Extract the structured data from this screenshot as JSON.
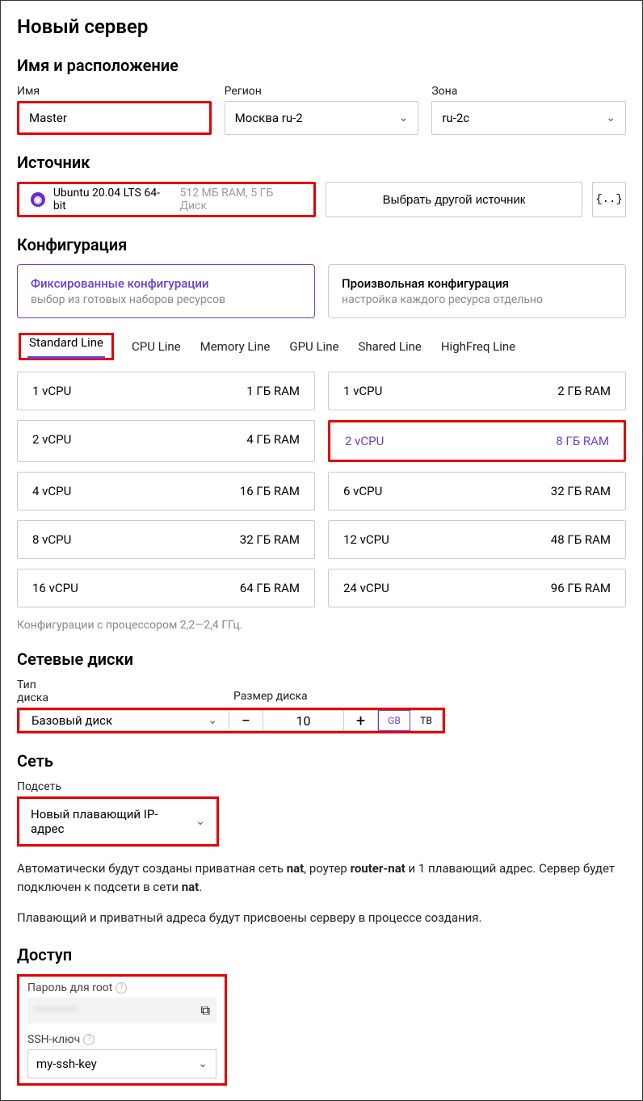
{
  "colors": {
    "highlight": "#e30000",
    "accent": "#6b3fd9",
    "muted": "#9a9a9a",
    "border": "#cccccc"
  },
  "page_title": "Новый сервер",
  "sections": {
    "name_location": {
      "title": "Имя и расположение",
      "name_label": "Имя",
      "name_value": "Master",
      "region_label": "Регион",
      "region_value": "Москва ru-2",
      "zone_label": "Зона",
      "zone_value": "ru-2c"
    },
    "source": {
      "title": "Источник",
      "os_name": "Ubuntu 20.04 LTS 64-bit",
      "os_specs": "512 МБ RAM, 5 ГБ Диск",
      "choose_other": "Выбрать другой источник",
      "code_btn": "{..}"
    },
    "config": {
      "title": "Конфигурация",
      "fixed_card": {
        "title": "Фиксированные конфигурации",
        "sub": "выбор из готовых наборов ресурсов"
      },
      "custom_card": {
        "title": "Произвольная конфигурация",
        "sub": "настройка каждого ресурса отдельно"
      },
      "tabs": [
        "Standard Line",
        "CPU Line",
        "Memory Line",
        "GPU Line",
        "Shared Line",
        "HighFreq Line"
      ],
      "options": [
        {
          "cpu": "1 vCPU",
          "ram": "1 ГБ RAM",
          "selected": false
        },
        {
          "cpu": "1 vCPU",
          "ram": "2 ГБ RAM",
          "selected": false
        },
        {
          "cpu": "2 vCPU",
          "ram": "4 ГБ RAM",
          "selected": false
        },
        {
          "cpu": "2 vCPU",
          "ram": "8 ГБ RAM",
          "selected": true
        },
        {
          "cpu": "4 vCPU",
          "ram": "16 ГБ RAM",
          "selected": false
        },
        {
          "cpu": "6 vCPU",
          "ram": "32 ГБ RAM",
          "selected": false
        },
        {
          "cpu": "8 vCPU",
          "ram": "32 ГБ RAM",
          "selected": false
        },
        {
          "cpu": "12 vCPU",
          "ram": "48 ГБ RAM",
          "selected": false
        },
        {
          "cpu": "16 vCPU",
          "ram": "64 ГБ RAM",
          "selected": false
        },
        {
          "cpu": "24 vCPU",
          "ram": "96 ГБ RAM",
          "selected": false
        }
      ],
      "hint": "Конфигурации с процессором 2,2—2,4 ГГц."
    },
    "disks": {
      "title": "Сетевые диски",
      "type_label": "Тип диска",
      "type_value": "Базовый диск",
      "size_label": "Размер диска",
      "size_value": "10",
      "unit_gb": "GB",
      "unit_tb": "ТВ"
    },
    "network": {
      "title": "Сеть",
      "subnet_label": "Подсеть",
      "subnet_value": "Новый плавающий IP-адрес",
      "info1_pre": "Автоматически будут созданы приватная сеть ",
      "info1_nat": "nat",
      "info1_mid": ", роутер ",
      "info1_router": "router-nat",
      "info1_post": " и 1 плавающий адрес. Сервер будет подключен к подсети в сети ",
      "info1_nat2": "nat",
      "info1_end": ".",
      "info2": "Плавающий и приватный адреса будут присвоены серверу в процессе создания."
    },
    "access": {
      "title": "Доступ",
      "password_label": "Пароль для root",
      "password_masked": "••••••••••",
      "ssh_label": "SSH-ключ",
      "ssh_value": "my-ssh-key"
    }
  }
}
